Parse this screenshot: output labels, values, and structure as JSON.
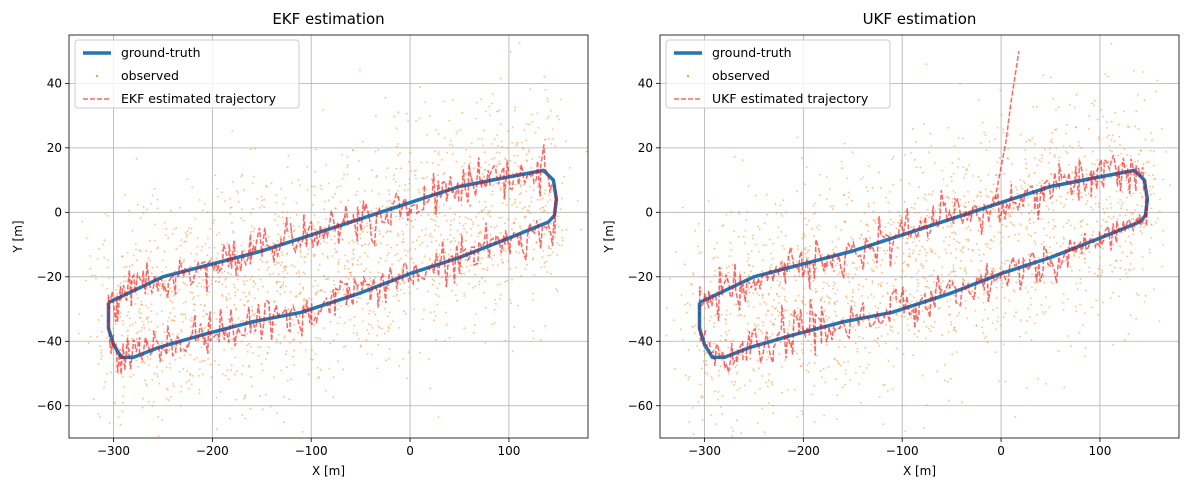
{
  "chart_data": [
    {
      "type": "scatter",
      "title": "EKF estimation",
      "xlabel": "X [m]",
      "ylabel": "Y [m]",
      "xlim": [
        -345,
        180
      ],
      "ylim": [
        -70,
        55
      ],
      "xticks": [
        -300,
        -200,
        -100,
        0,
        100
      ],
      "yticks": [
        -60,
        -40,
        -20,
        0,
        20,
        40
      ],
      "grid": true,
      "legend_position": "top-left",
      "series": [
        {
          "name": "ground-truth",
          "kind": "line",
          "color": "#1f77b4",
          "points": [
            [
              -305,
              -28
            ],
            [
              -250,
              -20
            ],
            [
              -200,
              -16
            ],
            [
              -150,
              -12
            ],
            [
              -100,
              -7
            ],
            [
              -50,
              -2
            ],
            [
              0,
              3
            ],
            [
              50,
              8
            ],
            [
              100,
              11
            ],
            [
              135,
              13
            ],
            [
              145,
              10
            ],
            [
              148,
              4
            ],
            [
              146,
              -1
            ],
            [
              140,
              -3
            ],
            [
              100,
              -8
            ],
            [
              50,
              -14
            ],
            [
              0,
              -19
            ],
            [
              -50,
              -25
            ],
            [
              -110,
              -31
            ],
            [
              -160,
              -34
            ],
            [
              -210,
              -38
            ],
            [
              -255,
              -42
            ],
            [
              -280,
              -45
            ],
            [
              -292,
              -45
            ],
            [
              -300,
              -41
            ],
            [
              -305,
              -36
            ],
            [
              -305,
              -28
            ]
          ]
        },
        {
          "name": "observed",
          "kind": "scatter",
          "color": "#ff7f0e",
          "noise_std": 15
        },
        {
          "name": "EKF estimated trajectory",
          "kind": "dashed-line",
          "color": "#ff0000",
          "noise_std": 3.5
        }
      ]
    },
    {
      "type": "scatter",
      "title": "UKF estimation",
      "xlabel": "X [m]",
      "ylabel": "Y [m]",
      "xlim": [
        -345,
        180
      ],
      "ylim": [
        -70,
        55
      ],
      "xticks": [
        -300,
        -200,
        -100,
        0,
        100
      ],
      "yticks": [
        -60,
        -40,
        -20,
        0,
        20,
        40
      ],
      "grid": true,
      "legend_position": "top-left",
      "series": [
        {
          "name": "ground-truth",
          "kind": "line",
          "color": "#1f77b4",
          "points": [
            [
              -305,
              -28
            ],
            [
              -250,
              -20
            ],
            [
              -200,
              -16
            ],
            [
              -150,
              -12
            ],
            [
              -100,
              -7
            ],
            [
              -50,
              -2
            ],
            [
              0,
              3
            ],
            [
              50,
              8
            ],
            [
              100,
              11
            ],
            [
              135,
              13
            ],
            [
              145,
              10
            ],
            [
              148,
              4
            ],
            [
              146,
              -1
            ],
            [
              140,
              -3
            ],
            [
              100,
              -8
            ],
            [
              50,
              -14
            ],
            [
              0,
              -19
            ],
            [
              -50,
              -25
            ],
            [
              -110,
              -31
            ],
            [
              -160,
              -34
            ],
            [
              -210,
              -38
            ],
            [
              -255,
              -42
            ],
            [
              -280,
              -45
            ],
            [
              -292,
              -45
            ],
            [
              -300,
              -41
            ],
            [
              -305,
              -36
            ],
            [
              -305,
              -28
            ]
          ]
        },
        {
          "name": "observed",
          "kind": "scatter",
          "color": "#ff7f0e",
          "noise_std": 15
        },
        {
          "name": "UKF estimated trajectory",
          "kind": "dashed-line",
          "color": "#ff0000",
          "noise_std": 3.5,
          "divergence_points": [
            [
              -8,
              2
            ],
            [
              -5,
              6
            ],
            [
              0,
              14
            ],
            [
              5,
              22
            ],
            [
              10,
              34
            ],
            [
              15,
              44
            ],
            [
              18,
              50
            ]
          ]
        }
      ]
    }
  ]
}
